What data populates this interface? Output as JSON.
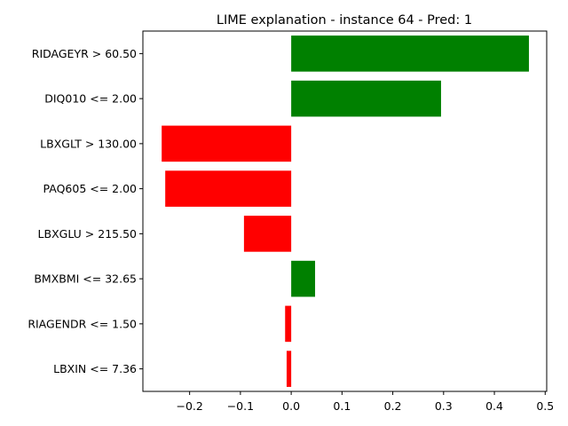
{
  "chart_data": {
    "type": "bar",
    "orientation": "horizontal",
    "title": "LIME explanation - instance 64 - Pred: 1",
    "xlabel": "",
    "ylabel": "",
    "xlim": [
      -0.292,
      0.503
    ],
    "xticks": [
      -0.2,
      -0.1,
      0.0,
      0.1,
      0.2,
      0.3,
      0.4,
      0.5
    ],
    "xtick_labels": [
      "−0.2",
      "−0.1",
      "0.0",
      "0.1",
      "0.2",
      "0.3",
      "0.4",
      "0.5"
    ],
    "grid": false,
    "categories": [
      "RIDAGEYR > 60.50",
      "DIQ010 <= 2.00",
      "LBXGLT > 130.00",
      "PAQ605 <= 2.00",
      "LBXGLU > 215.50",
      "BMXBMI <= 32.65",
      "RIAGENDR <= 1.50",
      "LBXIN <= 7.36"
    ],
    "values": [
      0.468,
      0.295,
      -0.255,
      -0.248,
      -0.093,
      0.047,
      -0.012,
      -0.009
    ],
    "colors": {
      "positive": "#008000",
      "negative": "#ff0000"
    }
  }
}
